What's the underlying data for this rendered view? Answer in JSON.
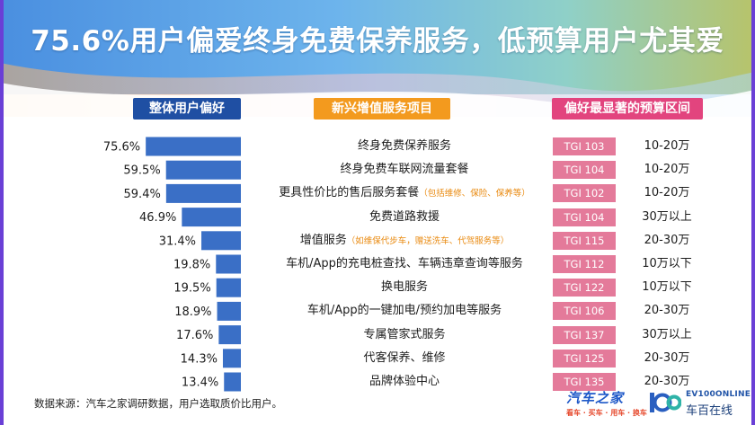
{
  "title": "75.6%用户偏爱终身免费保养服务，低预算用户尤其爱",
  "headers": {
    "overall": "整体用户偏好",
    "services": "新兴增值服务项目",
    "budget": "偏好最显著的预算区间"
  },
  "rows": [
    {
      "label": "终身免费保养服务",
      "note": "",
      "tgi": "TGI 103",
      "budget": "10-20万"
    },
    {
      "label": "终身免费车联网流量套餐",
      "note": "",
      "tgi": "TGI 104",
      "budget": "10-20万"
    },
    {
      "label": "更具性价比的售后服务套餐",
      "note": "（包括维修、保险、保养等）",
      "tgi": "TGI 102",
      "budget": "10-20万"
    },
    {
      "label": "免费道路救援",
      "note": "",
      "tgi": "TGI 104",
      "budget": "30万以上"
    },
    {
      "label": "增值服务",
      "note": "（如维保代步车，赠送洗车、代驾服务等）",
      "tgi": "TGI 115",
      "budget": "20-30万"
    },
    {
      "label": "车机/App的充电桩查找、车辆违章查询等服务",
      "note": "",
      "tgi": "TGI 112",
      "budget": "10万以下"
    },
    {
      "label": "换电服务",
      "note": "",
      "tgi": "TGI 122",
      "budget": "10万以下"
    },
    {
      "label": "车机/App的一键加电/预约加电等服务",
      "note": "",
      "tgi": "TGI 106",
      "budget": "20-30万"
    },
    {
      "label": "专属管家式服务",
      "note": "",
      "tgi": "TGI 137",
      "budget": "30万以上"
    },
    {
      "label": "代客保养、维修",
      "note": "",
      "tgi": "TGI 125",
      "budget": "20-30万"
    },
    {
      "label": "品牌体验中心",
      "note": "",
      "tgi": "TGI 135",
      "budget": "20-30万"
    }
  ],
  "chart_data": {
    "type": "bar",
    "orientation": "horizontal",
    "categories": [
      "终身免费保养服务",
      "终身免费车联网流量套餐",
      "更具性价比的售后服务套餐",
      "免费道路救援",
      "增值服务",
      "车机/App的充电桩查找、车辆违章查询等服务",
      "换电服务",
      "车机/App的一键加电/预约加电等服务",
      "专属管家式服务",
      "代客保养、维修",
      "品牌体验中心"
    ],
    "values": [
      75.6,
      59.5,
      59.4,
      46.9,
      31.4,
      19.8,
      19.5,
      18.9,
      17.6,
      14.3,
      13.4
    ],
    "value_labels": [
      "75.6%",
      "59.5%",
      "59.4%",
      "46.9%",
      "31.4%",
      "19.8%",
      "19.5%",
      "18.9%",
      "17.6%",
      "14.3%",
      "13.4%"
    ],
    "unit": "%",
    "xlim": [
      0,
      100
    ],
    "bar_color": "#3a6fc6"
  },
  "source": "数据来源：汽车之家调研数据，用户选取质价比用户。",
  "logos": {
    "autohome": "汽车之家",
    "autohome_tagline": "看车 · 买车 · 用车 · 换车",
    "ev_en": "EV100ONLINE",
    "ev_cn": "车百在线"
  },
  "colors": {
    "header_overall": "#1f4fa3",
    "header_services": "#f39a1e",
    "header_budget": "#e2447e",
    "tgi_badge": "#e47a9a",
    "note": "#e98a10"
  }
}
